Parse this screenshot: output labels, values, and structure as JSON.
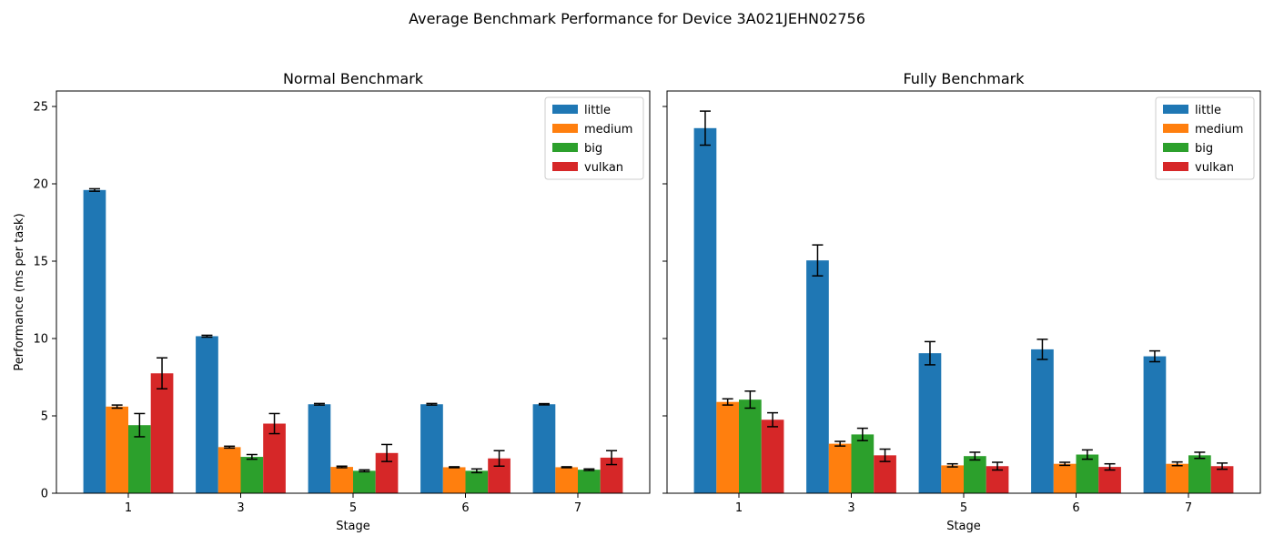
{
  "figure": {
    "title": "Average Benchmark Performance for Device 3A021JEHN02756"
  },
  "colors": {
    "little": "#1f77b4",
    "medium": "#ff7f0e",
    "big": "#2ca02c",
    "vulkan": "#d62728"
  },
  "chart_data": [
    {
      "type": "bar",
      "title": "Normal Benchmark",
      "xlabel": "Stage",
      "ylabel": "Performance (ms per task)",
      "categories": [
        "1",
        "3",
        "5",
        "6",
        "7"
      ],
      "ylim": [
        0,
        26
      ],
      "yticks": [
        0,
        5,
        10,
        15,
        20,
        25
      ],
      "grid": false,
      "legend_position": "top-right",
      "series": [
        {
          "name": "little",
          "values": [
            19.6,
            10.15,
            5.75,
            5.75,
            5.75
          ],
          "errors": [
            0.08,
            0.06,
            0.05,
            0.05,
            0.04
          ]
        },
        {
          "name": "medium",
          "values": [
            5.6,
            2.98,
            1.7,
            1.68,
            1.68
          ],
          "errors": [
            0.1,
            0.06,
            0.05,
            0.03,
            0.03
          ]
        },
        {
          "name": "big",
          "values": [
            4.4,
            2.35,
            1.45,
            1.45,
            1.52
          ],
          "errors": [
            0.75,
            0.15,
            0.06,
            0.12,
            0.05
          ]
        },
        {
          "name": "vulkan",
          "values": [
            7.75,
            4.5,
            2.6,
            2.25,
            2.3
          ],
          "errors": [
            1.0,
            0.65,
            0.55,
            0.5,
            0.45
          ]
        }
      ]
    },
    {
      "type": "bar",
      "title": "Fully Benchmark",
      "xlabel": "Stage",
      "ylabel": "",
      "categories": [
        "1",
        "3",
        "5",
        "6",
        "7"
      ],
      "ylim": [
        0,
        26
      ],
      "yticks": [
        0,
        5,
        10,
        15,
        20,
        25
      ],
      "show_ytick_labels": false,
      "grid": false,
      "legend_position": "top-right",
      "series": [
        {
          "name": "little",
          "values": [
            23.6,
            15.05,
            9.05,
            9.3,
            8.85
          ],
          "errors": [
            1.1,
            1.0,
            0.75,
            0.65,
            0.35
          ]
        },
        {
          "name": "medium",
          "values": [
            5.9,
            3.2,
            1.8,
            1.9,
            1.9
          ],
          "errors": [
            0.2,
            0.15,
            0.1,
            0.1,
            0.12
          ]
        },
        {
          "name": "big",
          "values": [
            6.05,
            3.8,
            2.4,
            2.5,
            2.45
          ],
          "errors": [
            0.55,
            0.4,
            0.25,
            0.3,
            0.2
          ]
        },
        {
          "name": "vulkan",
          "values": [
            4.75,
            2.45,
            1.75,
            1.7,
            1.75
          ],
          "errors": [
            0.45,
            0.4,
            0.25,
            0.2,
            0.2
          ]
        }
      ]
    }
  ]
}
